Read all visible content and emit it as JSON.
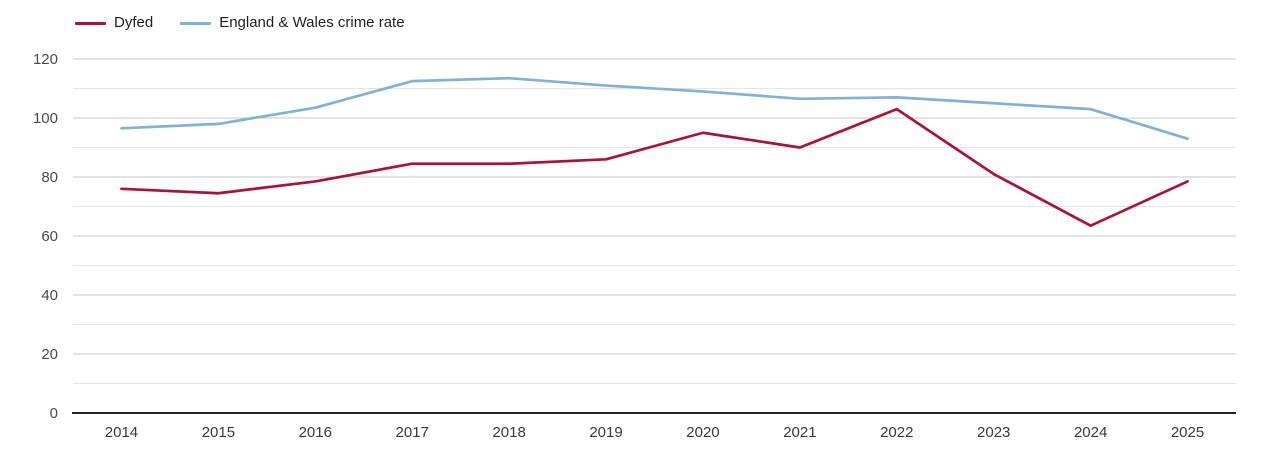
{
  "chart_data": {
    "type": "line",
    "title": "",
    "xlabel": "",
    "ylabel": "",
    "x": [
      "2014",
      "2015",
      "2016",
      "2017",
      "2018",
      "2019",
      "2020",
      "2021",
      "2022",
      "2023",
      "2024",
      "2025"
    ],
    "series": [
      {
        "name": "Dyfed",
        "color": "#ab1239",
        "values": [
          76,
          74.5,
          78.5,
          84.5,
          84.5,
          86,
          95,
          90,
          103,
          81,
          63.5,
          78.5
        ]
      },
      {
        "name": "England & Wales crime rate",
        "color": "#7fb2d6",
        "values": [
          96.5,
          98,
          103.5,
          112.5,
          113.5,
          111,
          109,
          106.5,
          107,
          105,
          103,
          93
        ]
      }
    ],
    "ylim": [
      0,
      125
    ],
    "yticks_major": [
      0,
      20,
      40,
      60,
      80,
      100,
      120
    ],
    "yticks_minor": [
      10,
      30,
      50,
      70,
      90,
      110
    ],
    "grid": "horizontal",
    "legend_position": "top-left",
    "legend": [
      "Dyfed",
      "England & Wales crime rate"
    ]
  },
  "colors": {
    "dyfed_line": "#ab1239",
    "england_wales_line": "#7fb2d6",
    "grid_major": "#c9c9c9",
    "grid_minor": "#e5e5e5",
    "axis_line": "#222222",
    "y_tick_label": "#4a4a4a",
    "x_tick_label": "#383838",
    "legend_text": "#1f1f1f"
  }
}
